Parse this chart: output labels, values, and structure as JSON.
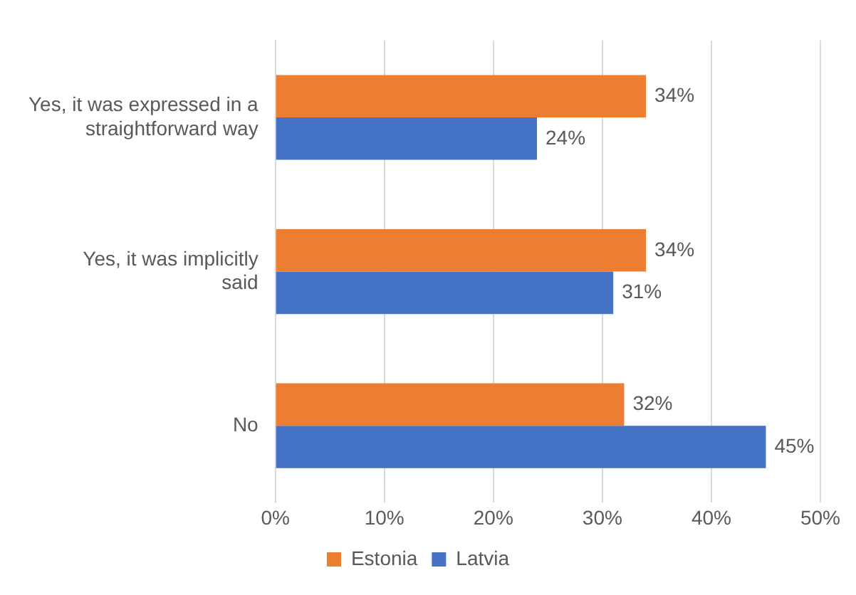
{
  "chart_data": {
    "type": "bar",
    "orientation": "horizontal",
    "categories": [
      "Yes, it was expressed in a straightforward way",
      "Yes, it was implicitly said",
      "No"
    ],
    "series": [
      {
        "name": "Estonia",
        "color": "#ed7d31",
        "values": [
          34,
          34,
          32
        ],
        "value_labels": [
          "34%",
          "34%",
          "32%"
        ]
      },
      {
        "name": "Latvia",
        "color": "#4472c4",
        "values": [
          24,
          31,
          45
        ],
        "value_labels": [
          "24%",
          "31%",
          "45%"
        ]
      }
    ],
    "xlim": [
      0,
      50
    ],
    "xticks": [
      {
        "value": 0,
        "label": "0%"
      },
      {
        "value": 10,
        "label": "10%"
      },
      {
        "value": 20,
        "label": "20%"
      },
      {
        "value": 30,
        "label": "30%"
      },
      {
        "value": 40,
        "label": "40%"
      },
      {
        "value": 50,
        "label": "50%"
      }
    ],
    "grid": "x",
    "legend": "bottom"
  }
}
